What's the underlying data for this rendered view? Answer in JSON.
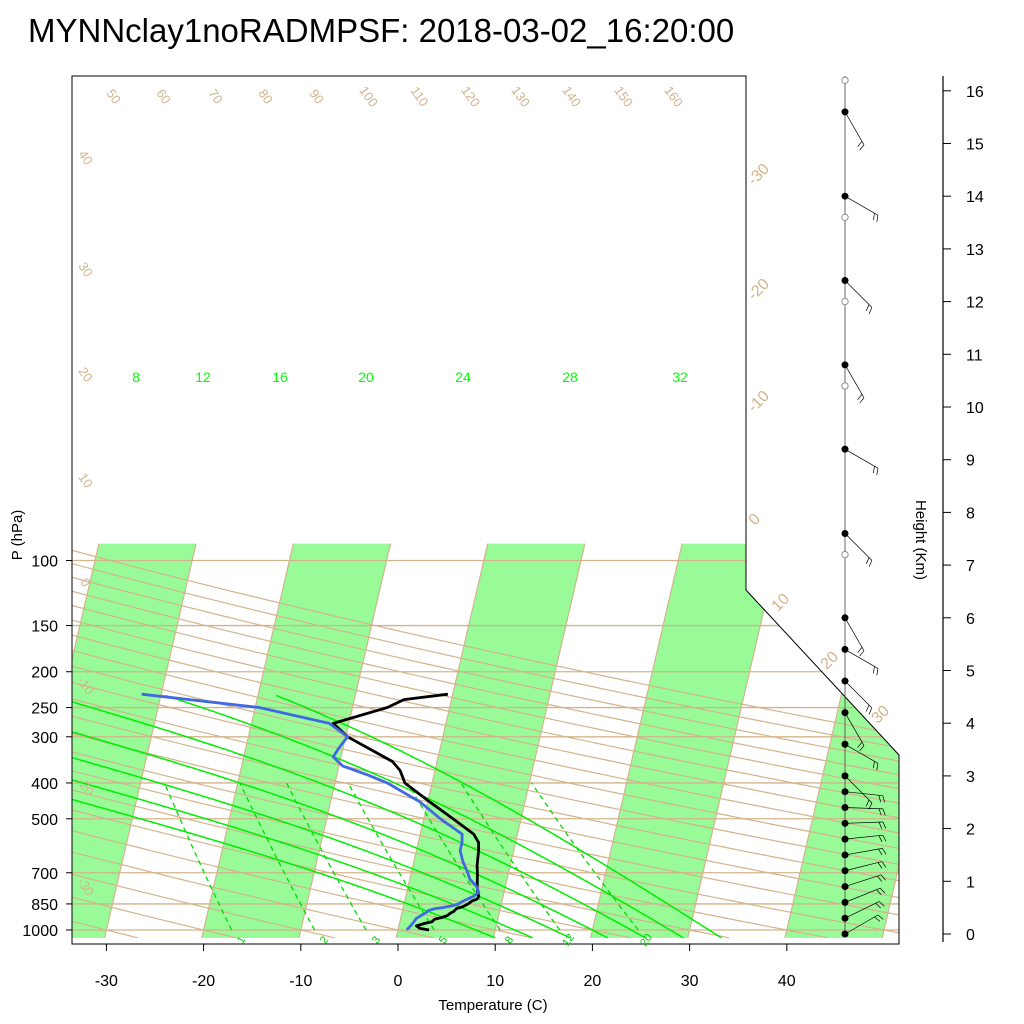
{
  "chart_data": {
    "type": "line",
    "title": "MYNNclay1noRADMPSF: 2018-03-02_16:20:00",
    "xlabel": "Temperature (C)",
    "ylabel": "P (hPa)",
    "y2label": "Height (Km)",
    "x_ticks": [
      "-30",
      "-20",
      "-10",
      "0",
      "10",
      "20",
      "30",
      "40"
    ],
    "p_ticks": [
      "100",
      "150",
      "200",
      "250",
      "300",
      "400",
      "500",
      "700",
      "850",
      "1000"
    ],
    "height_ticks": [
      "0",
      "1",
      "2",
      "3",
      "4",
      "5",
      "6",
      "7",
      "8",
      "9",
      "10",
      "11",
      "12",
      "13",
      "14",
      "15",
      "16"
    ],
    "isotherm_labels": [
      "-30",
      "-20",
      "-10",
      "0",
      "10",
      "20",
      "30"
    ],
    "dry_adiabat_labels": [
      "50",
      "60",
      "70",
      "80",
      "90",
      "100",
      "110",
      "120",
      "130",
      "140",
      "150",
      "160"
    ],
    "dry_adiabat_left_labels": [
      "40",
      "30",
      "20",
      "10",
      "0",
      "-10",
      "-20",
      "-30"
    ],
    "moist_adiabat_labels": [
      "8",
      "12",
      "16",
      "20",
      "24",
      "28",
      "32"
    ],
    "mixing_ratio_labels": [
      "1",
      "2",
      "3",
      "5",
      "8",
      "12",
      "20"
    ],
    "series": [
      {
        "name": "temperature",
        "color": "#000000",
        "points": [
          [
            1000,
            3.2
          ],
          [
            990,
            2.2
          ],
          [
            975,
            1.8
          ],
          [
            960,
            2.6
          ],
          [
            950,
            3.3
          ],
          [
            935,
            3.5
          ],
          [
            925,
            4.2
          ],
          [
            915,
            4.7
          ],
          [
            900,
            5.0
          ],
          [
            890,
            5.3
          ],
          [
            875,
            5.5
          ],
          [
            865,
            6.1
          ],
          [
            850,
            6.6
          ],
          [
            835,
            6.9
          ],
          [
            825,
            7.4
          ],
          [
            810,
            7.5
          ],
          [
            790,
            7.3
          ],
          [
            760,
            7.1
          ],
          [
            740,
            7.0
          ],
          [
            700,
            6.8
          ],
          [
            670,
            6.6
          ],
          [
            640,
            6.5
          ],
          [
            610,
            6.4
          ],
          [
            580,
            6.2
          ],
          [
            550,
            5.5
          ],
          [
            500,
            3.0
          ],
          [
            450,
            0.2
          ],
          [
            400,
            -2.8
          ],
          [
            370,
            -3.6
          ],
          [
            350,
            -4.6
          ],
          [
            300,
            -9.8
          ],
          [
            276,
            -11.6
          ],
          [
            250,
            -6.4
          ],
          [
            238,
            -4.9
          ],
          [
            230,
            -0.5
          ]
        ]
      },
      {
        "name": "dewpoint",
        "color": "#4169e1",
        "points": [
          [
            1000,
            0.9
          ],
          [
            975,
            1.2
          ],
          [
            955,
            1.4
          ],
          [
            930,
            1.6
          ],
          [
            900,
            2.4
          ],
          [
            885,
            2.7
          ],
          [
            875,
            3.3
          ],
          [
            870,
            4.0
          ],
          [
            860,
            5.0
          ],
          [
            850,
            5.6
          ],
          [
            835,
            6.0
          ],
          [
            810,
            7.0
          ],
          [
            790,
            7.4
          ],
          [
            760,
            7.0
          ],
          [
            730,
            6.2
          ],
          [
            700,
            5.8
          ],
          [
            650,
            5.0
          ],
          [
            610,
            4.5
          ],
          [
            580,
            4.5
          ],
          [
            550,
            4.3
          ],
          [
            500,
            1.7
          ],
          [
            450,
            -0.8
          ],
          [
            400,
            -4.6
          ],
          [
            380,
            -6.9
          ],
          [
            360,
            -9.6
          ],
          [
            340,
            -10.8
          ],
          [
            320,
            -10.4
          ],
          [
            300,
            -9.8
          ],
          [
            276,
            -12.0
          ],
          [
            250,
            -19.6
          ],
          [
            230,
            -32.0
          ]
        ]
      }
    ],
    "wind_profile": {
      "heights_km": [
        0,
        0.3,
        0.6,
        0.9,
        1.2,
        1.5,
        1.8,
        2.1,
        2.4,
        2.7,
        3.0,
        3.6,
        4.2,
        4.8,
        5.4,
        6.0,
        7.6,
        9.2,
        10.8,
        12.4,
        14.0,
        15.6
      ],
      "open_circle_heights_km": [
        7.2,
        10.4,
        12.0,
        13.6,
        16.2
      ]
    },
    "grid": true,
    "legend": "none"
  }
}
